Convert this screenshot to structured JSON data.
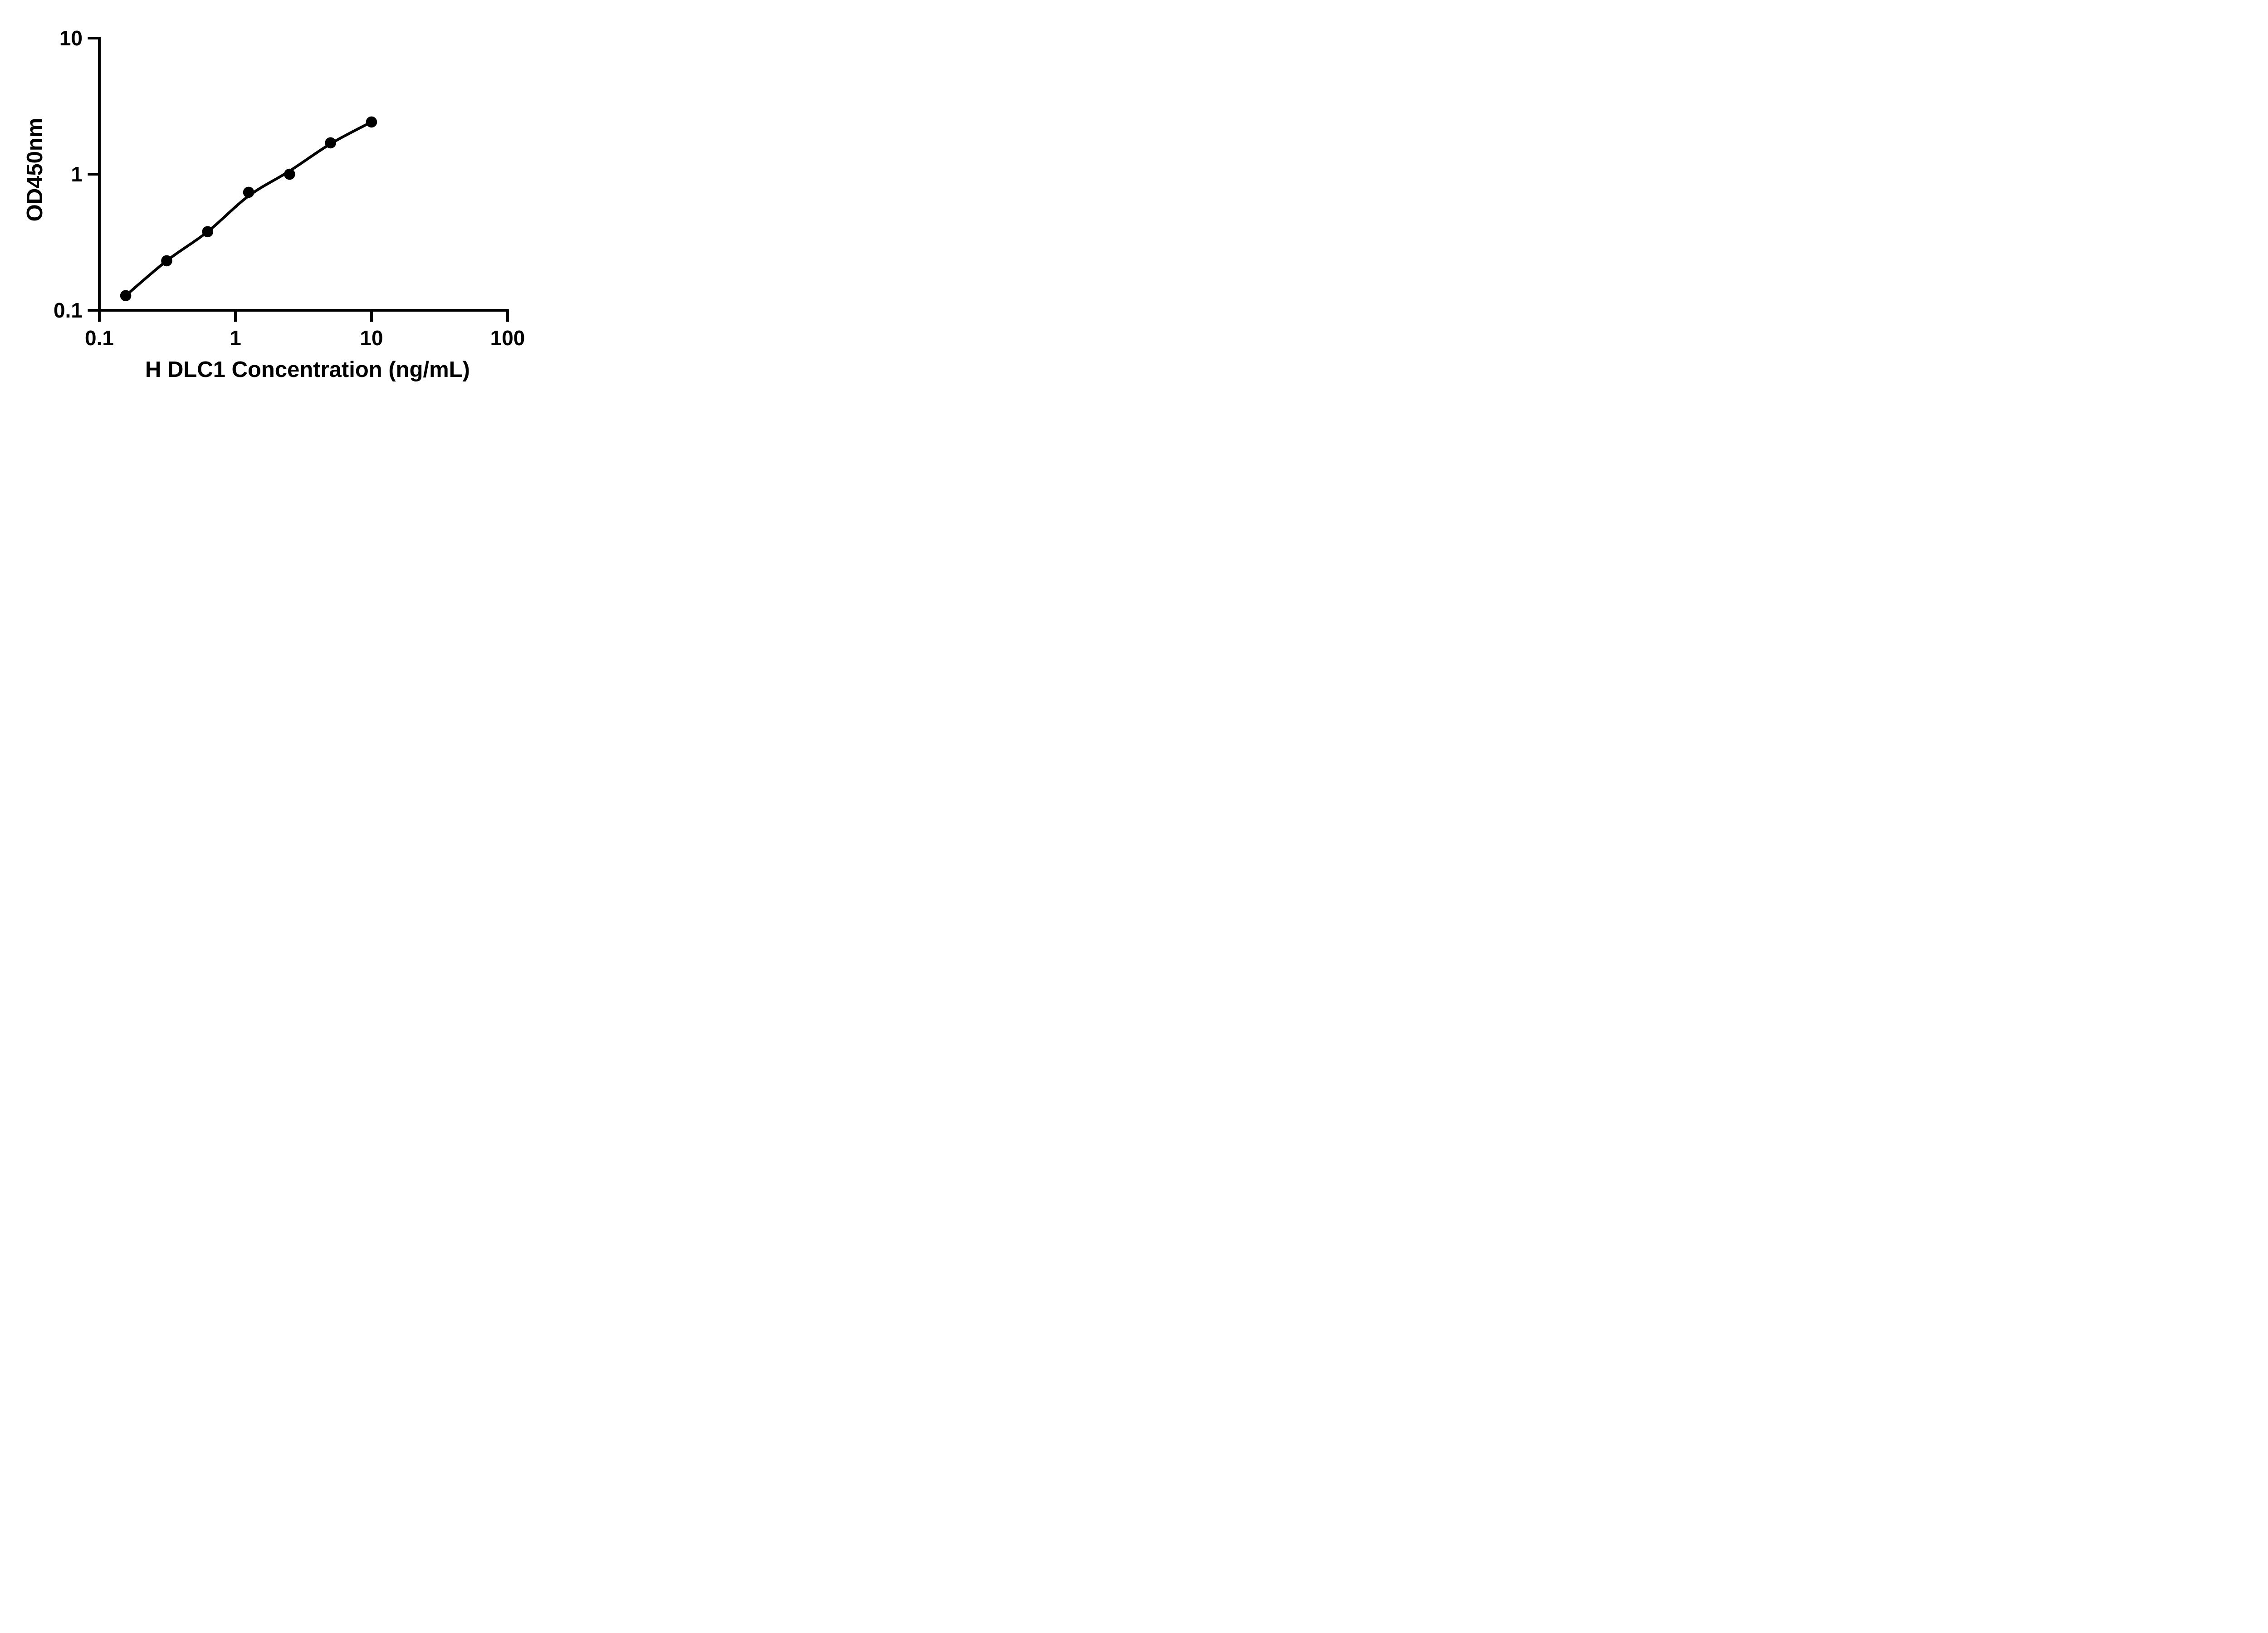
{
  "figure": {
    "background_color": "#ffffff",
    "ink_color": "#000000",
    "description": "ELISA standard curve, log-log scatter plot with fitted curve"
  },
  "chart_data": {
    "type": "scatter",
    "title": "",
    "xlabel": "H DLC1 Concentration (ng/mL)",
    "ylabel": "OD450nm",
    "x_scale": "log10",
    "y_scale": "log10",
    "xlim": [
      0.1,
      100
    ],
    "ylim": [
      0.1,
      10
    ],
    "x_ticks": [
      0.1,
      1,
      10,
      100
    ],
    "x_tick_labels": [
      "0.1",
      "1",
      "10",
      "100"
    ],
    "y_ticks": [
      0.1,
      1,
      10
    ],
    "y_tick_labels": [
      "0.1",
      "1",
      "10"
    ],
    "grid": false,
    "legend": "none",
    "series": [
      {
        "name": "standard-curve-points",
        "marker": "filled-circle",
        "marker_color": "#000000",
        "x": [
          0.15625,
          0.3125,
          0.625,
          1.25,
          2.5,
          5,
          10
        ],
        "y": [
          0.128,
          0.231,
          0.378,
          0.736,
          1.0,
          1.7,
          2.42
        ]
      }
    ],
    "fit_curve": {
      "name": "fitted-line",
      "line_style": "solid",
      "line_color": "#000000",
      "x": [
        0.15625,
        0.3125,
        0.625,
        1.25,
        2.5,
        5,
        10
      ],
      "y": [
        0.128,
        0.231,
        0.378,
        0.692,
        1.055,
        1.672,
        2.42
      ]
    }
  }
}
